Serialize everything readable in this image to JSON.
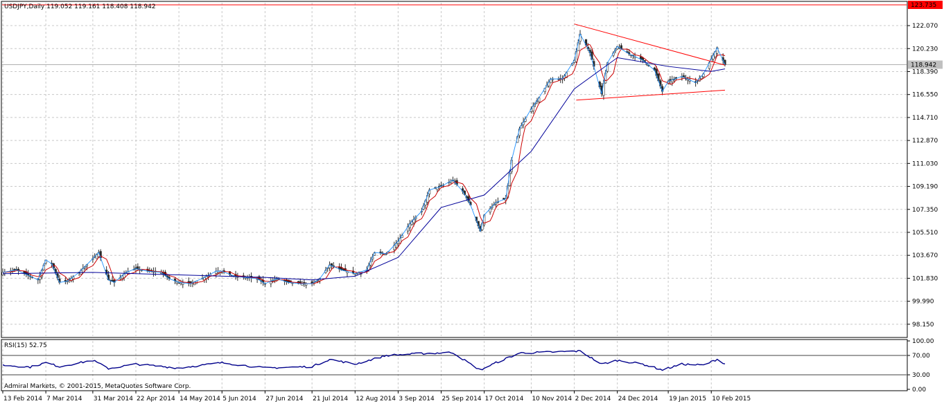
{
  "header": {
    "symbol_info": "USDJPY,Daily  119.052 119.161 118.408 118.942"
  },
  "rsi_panel": {
    "label": "RSI(15) 52.75"
  },
  "footer": {
    "copyright": "Admiral Markets, © 2001-2015, MetaQuotes Software Corp."
  },
  "colors": {
    "up_candle": "#2a2a2a",
    "down_candle": "#2a2a2a",
    "ma_fast": "#cc0000",
    "ma_slow": "#000099",
    "zigzag": "#1e90ff",
    "trendline": "#ff0000",
    "rsi_line": "#00008b",
    "grid": "#c8c8c8",
    "current_price_bg": "#c0c0c0",
    "resistance_label_bg": "#ff0000"
  },
  "chart_data": [
    {
      "type": "candlestick",
      "title": "USDJPY,Daily",
      "ohlc_last": {
        "open": 119.052,
        "high": 119.161,
        "low": 118.408,
        "close": 118.942
      },
      "ylim": [
        97.2,
        123.9
      ],
      "y_ticks": [
        122.07,
        120.23,
        118.39,
        116.55,
        114.71,
        112.87,
        111.03,
        109.19,
        107.35,
        105.51,
        103.67,
        101.83,
        99.99,
        98.15
      ],
      "y_tick_labels": [
        "122.070",
        "120.230",
        "118.390",
        "116.550",
        "114.710",
        "112.870",
        "111.030",
        "109.190",
        "107.350",
        "105.510",
        "103.670",
        "101.830",
        "99.990",
        "98.150"
      ],
      "x_tick_labels": [
        "13 Feb 2014",
        "7 Mar 2014",
        "31 Mar 2014",
        "22 Apr 2014",
        "14 May 2014",
        "5 Jun 2014",
        "27 Jun 2014",
        "21 Jul 2014",
        "12 Aug 2014",
        "3 Sep 2014",
        "25 Sep 2014",
        "17 Oct 2014",
        "10 Nov 2014",
        "2 Dec 2014",
        "24 Dec 2014",
        "19 Jan 2015",
        "10 Feb 2015"
      ],
      "current_price": 118.942,
      "current_price_label": "118.942",
      "resistance_level": 123.735,
      "resistance_label": "123.735",
      "close_path": [
        [
          "13 Feb 2014",
          102.3
        ],
        [
          "20 Feb 2014",
          102.5
        ],
        [
          "27 Feb 2014",
          102.0
        ],
        [
          "3 Mar 2014",
          101.7
        ],
        [
          "7 Mar 2014",
          103.3
        ],
        [
          "10 Mar 2014",
          103.0
        ],
        [
          "14 Mar 2014",
          101.5
        ],
        [
          "18 Mar 2014",
          101.6
        ],
        [
          "24 Mar 2014",
          102.3
        ],
        [
          "31 Mar 2014",
          103.4
        ],
        [
          "3 Apr 2014",
          103.9
        ],
        [
          "8 Apr 2014",
          101.7
        ],
        [
          "11 Apr 2014",
          101.5
        ],
        [
          "17 Apr 2014",
          102.3
        ],
        [
          "22 Apr 2014",
          102.6
        ],
        [
          "28 Apr 2014",
          102.4
        ],
        [
          "5 May 2014",
          102.3
        ],
        [
          "9 May 2014",
          101.8
        ],
        [
          "14 May 2014",
          101.5
        ],
        [
          "20 May 2014",
          101.4
        ],
        [
          "27 May 2014",
          101.9
        ],
        [
          "2 Jun 2014",
          102.4
        ],
        [
          "5 Jun 2014",
          102.4
        ],
        [
          "11 Jun 2014",
          102.0
        ],
        [
          "17 Jun 2014",
          101.9
        ],
        [
          "23 Jun 2014",
          101.8
        ],
        [
          "27 Jun 2014",
          101.4
        ],
        [
          "3 Jul 2014",
          101.8
        ],
        [
          "9 Jul 2014",
          101.5
        ],
        [
          "15 Jul 2014",
          101.4
        ],
        [
          "21 Jul 2014",
          101.4
        ],
        [
          "25 Jul 2014",
          101.8
        ],
        [
          "30 Jul 2014",
          102.9
        ],
        [
          "5 Aug 2014",
          102.5
        ],
        [
          "12 Aug 2014",
          102.2
        ],
        [
          "18 Aug 2014",
          102.5
        ],
        [
          "22 Aug 2014",
          103.9
        ],
        [
          "28 Aug 2014",
          103.8
        ],
        [
          "3 Sep 2014",
          104.8
        ],
        [
          "9 Sep 2014",
          106.2
        ],
        [
          "15 Sep 2014",
          107.2
        ],
        [
          "19 Sep 2014",
          108.9
        ],
        [
          "25 Sep 2014",
          109.2
        ],
        [
          "1 Oct 2014",
          109.7
        ],
        [
          "6 Oct 2014",
          108.8
        ],
        [
          "10 Oct 2014",
          107.7
        ],
        [
          "15 Oct 2014",
          105.6
        ],
        [
          "17 Oct 2014",
          106.9
        ],
        [
          "23 Oct 2014",
          107.9
        ],
        [
          "28 Oct 2014",
          108.2
        ],
        [
          "31 Oct 2014",
          111.3
        ],
        [
          "4 Nov 2014",
          113.8
        ],
        [
          "10 Nov 2014",
          115.4
        ],
        [
          "14 Nov 2014",
          116.3
        ],
        [
          "20 Nov 2014",
          117.8
        ],
        [
          "26 Nov 2014",
          117.8
        ],
        [
          "2 Dec 2014",
          119.3
        ],
        [
          "5 Dec 2014",
          121.4
        ],
        [
          "10 Dec 2014",
          119.9
        ],
        [
          "16 Dec 2014",
          116.6
        ],
        [
          "19 Dec 2014",
          119.1
        ],
        [
          "24 Dec 2014",
          120.4
        ],
        [
          "30 Dec 2014",
          119.8
        ],
        [
          "6 Jan 2015",
          119.3
        ],
        [
          "12 Jan 2015",
          118.5
        ],
        [
          "16 Jan 2015",
          116.8
        ],
        [
          "19 Jan 2015",
          117.6
        ],
        [
          "26 Jan 2015",
          118.0
        ],
        [
          "2 Feb 2015",
          117.5
        ],
        [
          "6 Feb 2015",
          118.2
        ],
        [
          "10 Feb 2015",
          119.4
        ],
        [
          "13 Feb 2015",
          120.3
        ],
        [
          "17 Feb 2015",
          118.942
        ]
      ],
      "series": [
        {
          "name": "",
          "kind": "moving-average-slow",
          "values": [
            [
              "13 Feb 2014",
              102.2
            ],
            [
              "31 Mar 2014",
              102.3
            ],
            [
              "14 May 2014",
              102.1
            ],
            [
              "27 Jun 2014",
              101.9
            ],
            [
              "21 Jul 2014",
              101.7
            ],
            [
              "12 Aug 2014",
              102.0
            ],
            [
              "3 Sep 2014",
              103.5
            ],
            [
              "25 Sep 2014",
              107.5
            ],
            [
              "17 Oct 2014",
              108.5
            ],
            [
              "10 Nov 2014",
              112.0
            ],
            [
              "2 Dec 2014",
              117.0
            ],
            [
              "24 Dec 2014",
              119.5
            ],
            [
              "19 Jan 2015",
              118.8
            ],
            [
              "10 Feb 2015",
              118.4
            ],
            [
              "17 Feb 2015",
              118.6
            ]
          ]
        }
      ],
      "trendlines": [
        {
          "from": [
            "2 Dec 2014",
            122.2
          ],
          "to": [
            "17 Feb 2015",
            118.9
          ]
        },
        {
          "from": [
            "3 Dec 2014",
            116.1
          ],
          "to": [
            "17 Feb 2015",
            116.9
          ]
        }
      ]
    },
    {
      "type": "line",
      "title": "RSI(15) 52.75",
      "ylim": [
        0,
        100
      ],
      "y_ticks": [
        100,
        70,
        30,
        0
      ],
      "y_tick_labels": [
        "100.00",
        "70.00",
        "30.00",
        "0.00"
      ],
      "levels": [
        70,
        30
      ],
      "series": [
        {
          "name": "",
          "values": [
            [
              "13 Feb 2014",
              50
            ],
            [
              "27 Feb 2014",
              46
            ],
            [
              "7 Mar 2014",
              55
            ],
            [
              "14 Mar 2014",
              47
            ],
            [
              "31 Mar 2014",
              60
            ],
            [
              "8 Apr 2014",
              43
            ],
            [
              "22 Apr 2014",
              52
            ],
            [
              "14 May 2014",
              44
            ],
            [
              "5 Jun 2014",
              55
            ],
            [
              "27 Jun 2014",
              44
            ],
            [
              "21 Jul 2014",
              47
            ],
            [
              "30 Jul 2014",
              62
            ],
            [
              "12 Aug 2014",
              52
            ],
            [
              "28 Aug 2014",
              70
            ],
            [
              "15 Sep 2014",
              74
            ],
            [
              "1 Oct 2014",
              76
            ],
            [
              "10 Oct 2014",
              52
            ],
            [
              "15 Oct 2014",
              40
            ],
            [
              "23 Oct 2014",
              55
            ],
            [
              "4 Nov 2014",
              75
            ],
            [
              "20 Nov 2014",
              77
            ],
            [
              "5 Dec 2014",
              79
            ],
            [
              "16 Dec 2014",
              52
            ],
            [
              "24 Dec 2014",
              60
            ],
            [
              "6 Jan 2015",
              52
            ],
            [
              "16 Jan 2015",
              40
            ],
            [
              "26 Jan 2015",
              52
            ],
            [
              "6 Feb 2015",
              50
            ],
            [
              "13 Feb 2015",
              62
            ],
            [
              "17 Feb 2015",
              52.75
            ]
          ]
        }
      ]
    }
  ]
}
